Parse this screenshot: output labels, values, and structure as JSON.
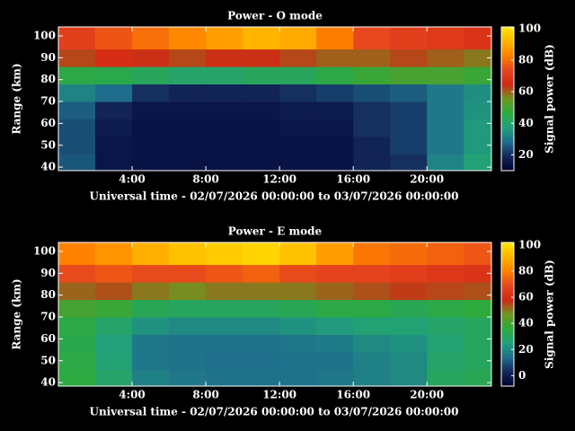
{
  "chart_data": [
    {
      "type": "heatmap",
      "title": "Power - O mode",
      "xlabel": "Universal time - 02/07/2026 00:00:00 to 03/07/2026 00:00:00",
      "ylabel": "Range (km)",
      "colorbar_label": "Signal power (dB)",
      "x_edges": [
        0,
        2,
        4,
        6,
        8,
        10,
        12,
        14,
        16,
        18,
        20,
        22,
        24
      ],
      "y_edges": [
        38,
        46,
        54,
        62,
        70,
        78,
        86,
        94,
        104
      ],
      "z": [
        [
          25,
          15,
          14,
          14,
          14,
          14,
          14,
          14,
          18,
          20,
          32,
          38
        ],
        [
          24,
          15,
          14,
          14,
          14,
          14,
          14,
          14,
          18,
          22,
          30,
          36
        ],
        [
          24,
          16,
          14,
          14,
          14,
          14,
          15,
          15,
          20,
          22,
          30,
          36
        ],
        [
          26,
          18,
          15,
          15,
          15,
          15,
          16,
          16,
          20,
          22,
          30,
          35
        ],
        [
          32,
          28,
          20,
          18,
          18,
          18,
          20,
          22,
          24,
          26,
          30,
          34
        ],
        [
          45,
          44,
          42,
          40,
          40,
          42,
          42,
          45,
          48,
          50,
          50,
          48
        ],
        [
          62,
          66,
          64,
          62,
          64,
          64,
          62,
          60,
          60,
          62,
          60,
          58
        ],
        [
          72,
          76,
          80,
          84,
          88,
          92,
          90,
          82,
          74,
          72,
          70,
          68
        ]
      ],
      "xlim": [
        0,
        23.5
      ],
      "ylim": [
        38.4,
        104.1
      ],
      "xticks": [
        {
          "value": 4,
          "label": "4:00"
        },
        {
          "value": 8,
          "label": "8:00"
        },
        {
          "value": 12,
          "label": "12:00"
        },
        {
          "value": 16,
          "label": "16:00"
        },
        {
          "value": 20,
          "label": "20:00"
        }
      ],
      "yticks": [
        40,
        50,
        60,
        70,
        80,
        90,
        100
      ],
      "clim": [
        10,
        101
      ],
      "cticks": [
        20,
        40,
        60,
        80,
        100
      ],
      "colormap": [
        "#000033",
        "#14285a",
        "#1e6e8c",
        "#21a07a",
        "#2eaa3c",
        "#6e9622",
        "#d22814",
        "#e6461e",
        "#ff8200",
        "#ffb400",
        "#ffe600"
      ]
    },
    {
      "type": "heatmap",
      "title": "Power - E mode",
      "xlabel": "Universal time - 02/07/2026 00:00:00 to 03/07/2026 00:00:00",
      "ylabel": "Range (km)",
      "colorbar_label": "Signal power (dB)",
      "x_edges": [
        0,
        2,
        4,
        6,
        8,
        10,
        12,
        14,
        16,
        18,
        20,
        22,
        24
      ],
      "y_edges": [
        38,
        46,
        54,
        62,
        70,
        78,
        86,
        94,
        104
      ],
      "z": [
        [
          35,
          28,
          18,
          16,
          15,
          15,
          15,
          16,
          18,
          20,
          30,
          32
        ],
        [
          34,
          26,
          16,
          15,
          14,
          14,
          15,
          15,
          18,
          20,
          28,
          30
        ],
        [
          33,
          25,
          16,
          15,
          15,
          15,
          16,
          17,
          20,
          22,
          26,
          30
        ],
        [
          34,
          28,
          22,
          20,
          20,
          20,
          22,
          24,
          26,
          26,
          28,
          30
        ],
        [
          40,
          38,
          32,
          30,
          30,
          30,
          32,
          34,
          34,
          32,
          34,
          36
        ],
        [
          52,
          54,
          50,
          48,
          50,
          50,
          50,
          52,
          54,
          56,
          55,
          54
        ],
        [
          70,
          72,
          70,
          70,
          72,
          74,
          70,
          68,
          68,
          66,
          64,
          62
        ],
        [
          80,
          84,
          90,
          94,
          96,
          98,
          94,
          86,
          78,
          76,
          74,
          72
        ]
      ],
      "xlim": [
        0,
        23.5
      ],
      "ylim": [
        38.4,
        104.1
      ],
      "xticks": [
        {
          "value": 4,
          "label": "4:00"
        },
        {
          "value": 8,
          "label": "8:00"
        },
        {
          "value": 12,
          "label": "12:00"
        },
        {
          "value": 16,
          "label": "16:00"
        },
        {
          "value": 20,
          "label": "20:00"
        }
      ],
      "yticks": [
        40,
        50,
        60,
        70,
        80,
        90,
        100
      ],
      "clim": [
        -8,
        102
      ],
      "cticks": [
        0,
        20,
        40,
        60,
        80,
        100
      ],
      "colormap": [
        "#000033",
        "#14285a",
        "#1e6e8c",
        "#21a07a",
        "#2eaa3c",
        "#6e9622",
        "#d22814",
        "#e6461e",
        "#ff8200",
        "#ffb400",
        "#ffe600"
      ]
    }
  ]
}
